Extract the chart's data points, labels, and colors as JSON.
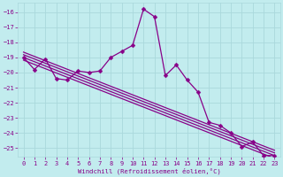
{
  "x": [
    0,
    1,
    2,
    3,
    4,
    5,
    6,
    7,
    8,
    9,
    10,
    11,
    12,
    13,
    14,
    15,
    16,
    17,
    18,
    19,
    20,
    21,
    22,
    23
  ],
  "line1": [
    -19.0,
    -19.8,
    -19.1,
    -20.4,
    -20.5,
    -19.9,
    -20.0,
    -19.9,
    -19.0,
    -18.6,
    -18.2,
    -15.8,
    -16.3,
    -20.2,
    -19.5,
    -20.5,
    -21.3,
    -23.3,
    -23.5,
    -24.0,
    -24.9,
    -24.6,
    -25.5,
    -25.5
  ],
  "background_color": "#c2ecee",
  "grid_color": "#aad8dc",
  "line_color": "#880088",
  "ylim_min": -25.6,
  "ylim_max": -15.4,
  "xlim_min": -0.5,
  "xlim_max": 23.5,
  "xlabel": "Windchill (Refroidissement éolien,°C)",
  "yticks": [
    -25,
    -24,
    -23,
    -22,
    -21,
    -20,
    -19,
    -18,
    -17,
    -16
  ],
  "xticks": [
    0,
    1,
    2,
    3,
    4,
    5,
    6,
    7,
    8,
    9,
    10,
    11,
    12,
    13,
    14,
    15,
    16,
    17,
    18,
    19,
    20,
    21,
    22,
    23
  ],
  "markersize": 2.5,
  "linewidth": 0.9,
  "trend_offsets": [
    0.0,
    0.18,
    0.35,
    -0.18
  ]
}
